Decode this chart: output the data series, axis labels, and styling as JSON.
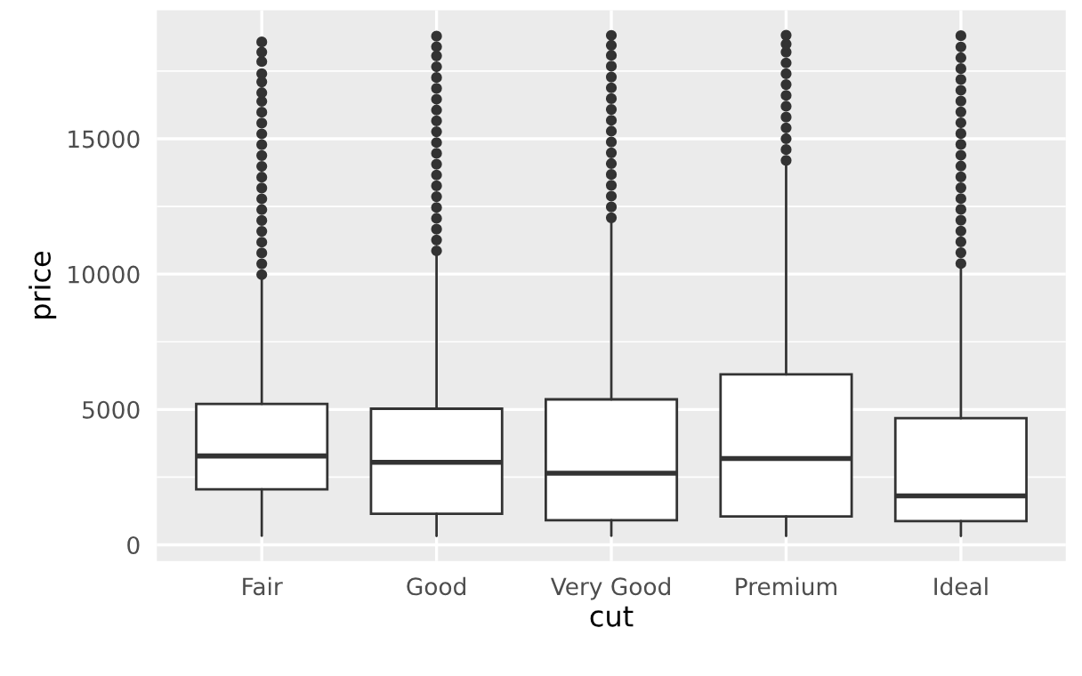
{
  "chart_data": {
    "type": "box",
    "xlabel": "cut",
    "ylabel": "price",
    "categories": [
      "Fair",
      "Good",
      "Very Good",
      "Premium",
      "Ideal"
    ],
    "boxes": [
      {
        "low": 337,
        "q1": 2050,
        "median": 3282,
        "q3": 5206,
        "high": 9900,
        "outliers": [
          9980,
          10380,
          10780,
          11180,
          11580,
          11980,
          12380,
          12780,
          13180,
          13580,
          13980,
          14380,
          14780,
          15180,
          15580,
          15980,
          16380,
          16700,
          17100,
          17400,
          17850,
          18200,
          18574
        ]
      },
      {
        "low": 327,
        "q1": 1145,
        "median": 3050,
        "q3": 5028,
        "high": 10800,
        "outliers": [
          10860,
          11260,
          11660,
          12060,
          12460,
          12860,
          13260,
          13660,
          14060,
          14460,
          14860,
          15260,
          15660,
          16060,
          16460,
          16860,
          17260,
          17660,
          18060,
          18400,
          18788
        ]
      },
      {
        "low": 336,
        "q1": 912,
        "median": 2648,
        "q3": 5373,
        "high": 12000,
        "outliers": [
          12080,
          12480,
          12880,
          13280,
          13680,
          14080,
          14480,
          14880,
          15280,
          15680,
          16080,
          16480,
          16880,
          17280,
          17680,
          18080,
          18450,
          18818
        ]
      },
      {
        "low": 326,
        "q1": 1046,
        "median": 3185,
        "q3": 6296,
        "high": 14150,
        "outliers": [
          14200,
          14600,
          15000,
          15400,
          15800,
          16200,
          16600,
          17000,
          17400,
          17800,
          18200,
          18500,
          18823
        ]
      },
      {
        "low": 326,
        "q1": 878,
        "median": 1810,
        "q3": 4678,
        "high": 10350,
        "outliers": [
          10390,
          10790,
          11190,
          11590,
          11990,
          12390,
          12790,
          13190,
          13590,
          13990,
          14390,
          14790,
          15190,
          15590,
          15990,
          16390,
          16790,
          17190,
          17590,
          17990,
          18390,
          18806
        ]
      }
    ],
    "color": "#333333",
    "ylim": [
      -600,
      19750
    ],
    "yticks": [
      0,
      5000,
      10000,
      15000
    ],
    "grid": true,
    "legend": false
  }
}
